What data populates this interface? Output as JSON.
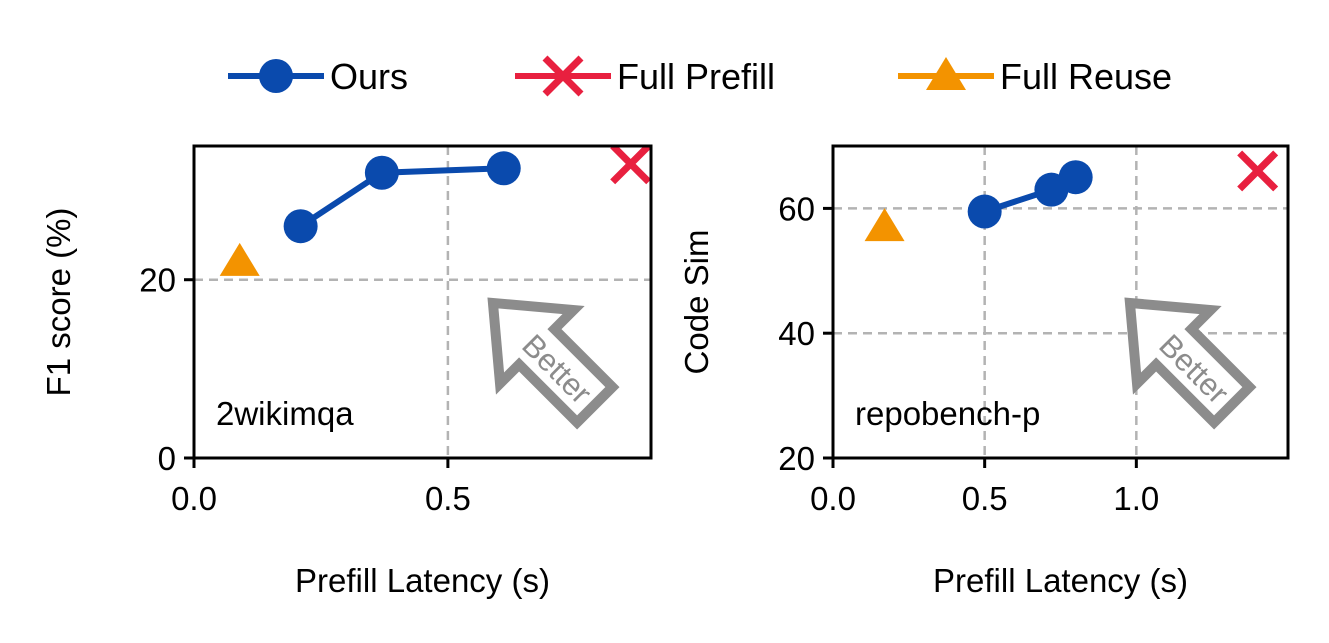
{
  "legend": {
    "position": "top-center",
    "entries": [
      {
        "label": "Ours",
        "color": "#0a4aad",
        "marker": "circle-icon"
      },
      {
        "label": "Full Prefill",
        "color": "#e8203f",
        "marker": "x-icon"
      },
      {
        "label": "Full Reuse",
        "color": "#f39300",
        "marker": "triangle-icon"
      }
    ]
  },
  "chart_data": [
    {
      "type": "scatter",
      "annotation": "2wikimqa",
      "xlabel": "Prefill Latency (s)",
      "ylabel": "F1 score (%)",
      "xlim": [
        0,
        0.9
      ],
      "ylim": [
        0,
        35
      ],
      "xticks": [
        0.0,
        0.5
      ],
      "xtick_labels": [
        "0.0",
        "0.5"
      ],
      "yticks": [
        0,
        20
      ],
      "ytick_labels": [
        "0",
        "20"
      ],
      "grid_x": [
        0.5
      ],
      "grid_y": [
        20
      ],
      "arrow_label": "Better",
      "series": [
        {
          "name": "Ours",
          "x": [
            0.21,
            0.37,
            0.61
          ],
          "y": [
            26,
            32,
            32.5
          ]
        },
        {
          "name": "Full Prefill",
          "x": [
            0.86
          ],
          "y": [
            33
          ]
        },
        {
          "name": "Full Reuse",
          "x": [
            0.09
          ],
          "y": [
            22
          ]
        }
      ]
    },
    {
      "type": "scatter",
      "annotation": "repobench-p",
      "xlabel": "Prefill Latency (s)",
      "ylabel": "Code Sim",
      "xlim": [
        0,
        1.5
      ],
      "ylim": [
        20,
        70
      ],
      "xticks": [
        0.0,
        0.5,
        1.0
      ],
      "xtick_labels": [
        "0.0",
        "0.5",
        "1.0"
      ],
      "yticks": [
        20,
        40,
        60
      ],
      "ytick_labels": [
        "20",
        "40",
        "60"
      ],
      "grid_x": [
        0.5,
        1.0
      ],
      "grid_y": [
        40,
        60
      ],
      "arrow_label": "Better",
      "series": [
        {
          "name": "Ours",
          "x": [
            0.5,
            0.72,
            0.8
          ],
          "y": [
            59.5,
            63,
            65
          ]
        },
        {
          "name": "Full Prefill",
          "x": [
            1.4
          ],
          "y": [
            66
          ]
        },
        {
          "name": "Full Reuse",
          "x": [
            0.17
          ],
          "y": [
            57
          ]
        }
      ]
    }
  ]
}
